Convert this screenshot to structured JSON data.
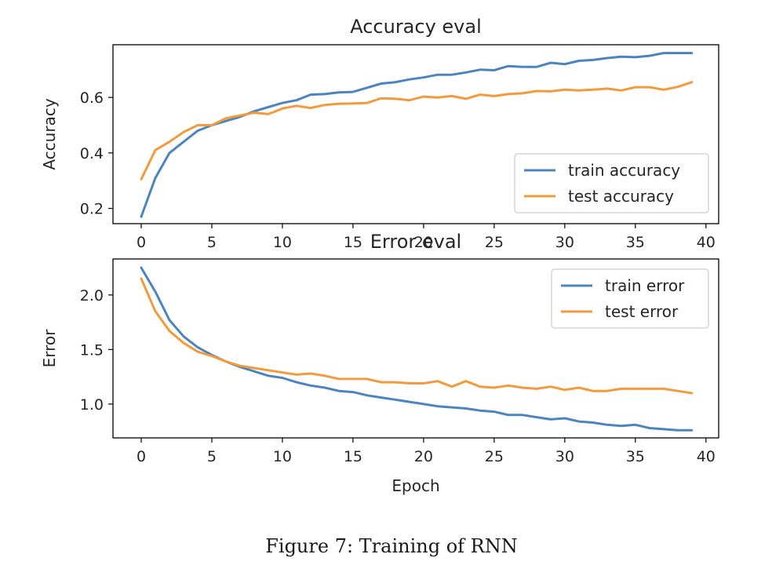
{
  "caption": "Figure 7: Training of RNN",
  "chart_data": [
    {
      "type": "line",
      "title": "Accuracy eval",
      "xlabel": "",
      "ylabel": "Accuracy",
      "xlim": [
        -2,
        40.9
      ],
      "ylim": [
        0.145,
        0.79
      ],
      "xticks": [
        0,
        5,
        10,
        15,
        20,
        25,
        30,
        35,
        40
      ],
      "yticks": [
        0.2,
        0.4,
        0.6
      ],
      "ytick_labels": [
        "0.2",
        "0.4",
        "0.6"
      ],
      "legend_position": "bottom-right",
      "x": [
        0,
        1,
        2,
        3,
        4,
        5,
        6,
        7,
        8,
        9,
        10,
        11,
        12,
        13,
        14,
        15,
        16,
        17,
        18,
        19,
        20,
        21,
        22,
        23,
        24,
        25,
        26,
        27,
        28,
        29,
        30,
        31,
        32,
        33,
        34,
        35,
        36,
        37,
        38,
        39
      ],
      "series": [
        {
          "name": "train accuracy",
          "color": "#4c84c0",
          "values": [
            0.17,
            0.31,
            0.4,
            0.44,
            0.48,
            0.5,
            0.515,
            0.53,
            0.55,
            0.565,
            0.58,
            0.59,
            0.61,
            0.612,
            0.618,
            0.62,
            0.635,
            0.65,
            0.655,
            0.665,
            0.672,
            0.682,
            0.682,
            0.69,
            0.7,
            0.698,
            0.713,
            0.71,
            0.71,
            0.725,
            0.72,
            0.732,
            0.735,
            0.742,
            0.747,
            0.745,
            0.75,
            0.76,
            0.76,
            0.76
          ]
        },
        {
          "name": "test accuracy",
          "color": "#f39a3c",
          "values": [
            0.305,
            0.41,
            0.44,
            0.475,
            0.5,
            0.5,
            0.525,
            0.535,
            0.545,
            0.54,
            0.56,
            0.57,
            0.562,
            0.573,
            0.577,
            0.578,
            0.58,
            0.597,
            0.595,
            0.59,
            0.603,
            0.6,
            0.605,
            0.595,
            0.61,
            0.605,
            0.612,
            0.615,
            0.623,
            0.622,
            0.628,
            0.625,
            0.628,
            0.632,
            0.625,
            0.637,
            0.637,
            0.628,
            0.638,
            0.655
          ]
        }
      ]
    },
    {
      "type": "line",
      "title": "Error eval",
      "xlabel": "Epoch",
      "ylabel": "Error",
      "xlim": [
        -2,
        40.9
      ],
      "ylim": [
        0.69,
        2.33
      ],
      "xticks": [
        0,
        5,
        10,
        15,
        20,
        25,
        30,
        35,
        40
      ],
      "yticks": [
        1.0,
        1.5,
        2.0
      ],
      "ytick_labels": [
        "1.0",
        "1.5",
        "2.0"
      ],
      "legend_position": "top-right",
      "x": [
        0,
        1,
        2,
        3,
        4,
        5,
        6,
        7,
        8,
        9,
        10,
        11,
        12,
        13,
        14,
        15,
        16,
        17,
        18,
        19,
        20,
        21,
        22,
        23,
        24,
        25,
        26,
        27,
        28,
        29,
        30,
        31,
        32,
        33,
        34,
        35,
        36,
        37,
        38,
        39
      ],
      "series": [
        {
          "name": "train error",
          "color": "#4c84c0",
          "values": [
            2.25,
            2.03,
            1.77,
            1.62,
            1.52,
            1.45,
            1.39,
            1.34,
            1.3,
            1.26,
            1.24,
            1.2,
            1.17,
            1.15,
            1.12,
            1.11,
            1.08,
            1.06,
            1.04,
            1.02,
            1.0,
            0.98,
            0.97,
            0.96,
            0.94,
            0.93,
            0.9,
            0.9,
            0.88,
            0.86,
            0.87,
            0.84,
            0.83,
            0.81,
            0.8,
            0.81,
            0.78,
            0.77,
            0.76,
            0.76
          ]
        },
        {
          "name": "test error",
          "color": "#f39a3c",
          "values": [
            2.15,
            1.85,
            1.67,
            1.56,
            1.48,
            1.44,
            1.39,
            1.35,
            1.33,
            1.31,
            1.29,
            1.27,
            1.28,
            1.26,
            1.23,
            1.23,
            1.23,
            1.2,
            1.2,
            1.19,
            1.19,
            1.21,
            1.16,
            1.21,
            1.16,
            1.15,
            1.17,
            1.15,
            1.14,
            1.16,
            1.13,
            1.15,
            1.12,
            1.12,
            1.14,
            1.14,
            1.14,
            1.14,
            1.12,
            1.1
          ]
        }
      ]
    }
  ]
}
